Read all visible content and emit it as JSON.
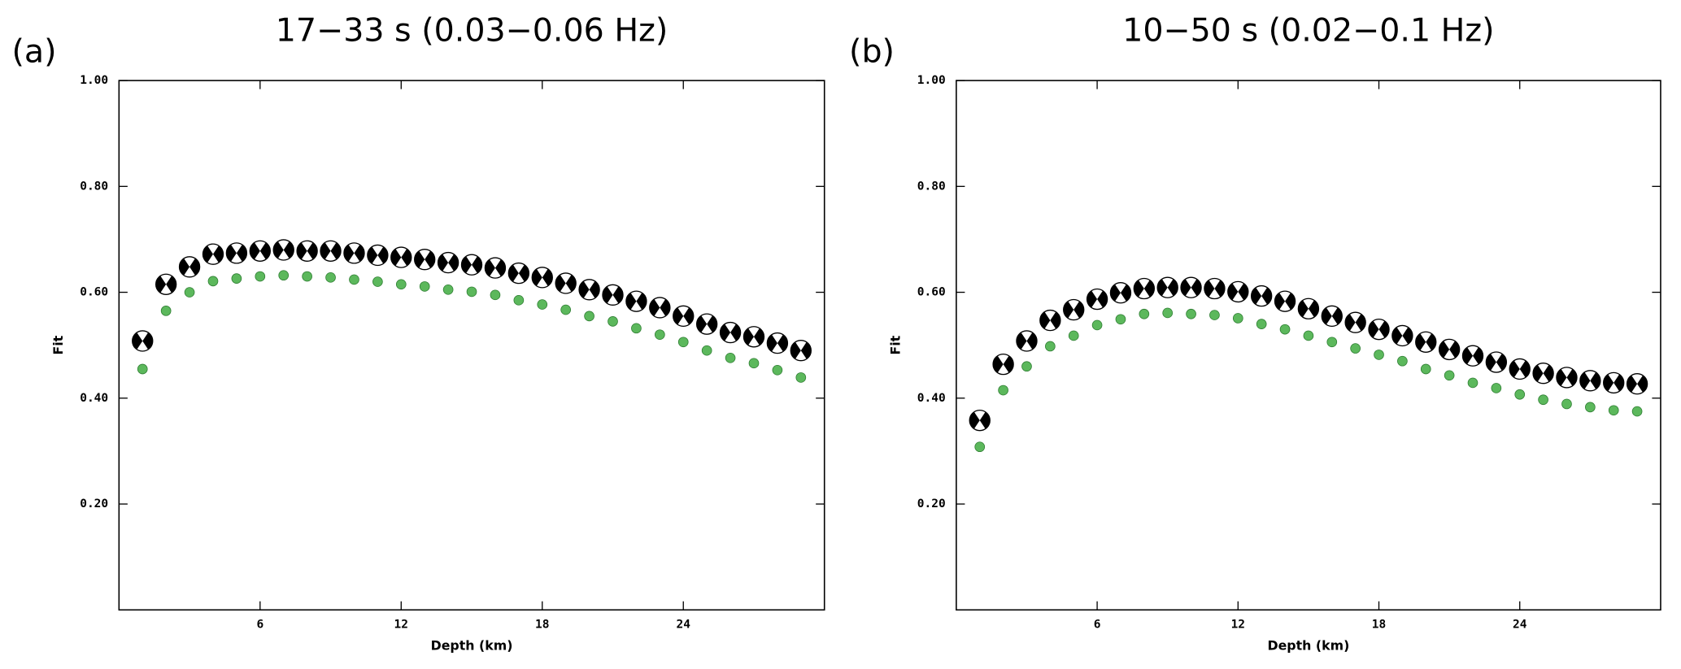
{
  "chart_data": [
    {
      "type": "scatter",
      "label": "(a)",
      "title": "17−33 s (0.03−0.06 Hz)",
      "x_label": "Depth (km)",
      "y_label": "Fit",
      "xlim": [
        0,
        30
      ],
      "xticks": [
        6,
        12,
        18,
        24
      ],
      "ylim": [
        0,
        1
      ],
      "yticks": [
        {
          "value": 0.2,
          "label": "0.20"
        },
        {
          "value": 0.4,
          "label": "0.40"
        },
        {
          "value": 0.6,
          "label": "0.60"
        },
        {
          "value": 0.8,
          "label": "0.80"
        },
        {
          "value": 1,
          "label": "1.00"
        }
      ],
      "x": [
        1,
        2,
        3,
        4,
        5,
        6,
        7,
        8,
        9,
        10,
        11,
        12,
        13,
        14,
        15,
        16,
        17,
        18,
        19,
        20,
        21,
        22,
        23,
        24,
        25,
        26,
        27,
        28,
        29
      ],
      "series": [
        {
          "marker": "beachball",
          "color": "#000000",
          "values": [
            0.508,
            0.615,
            0.648,
            0.672,
            0.674,
            0.678,
            0.68,
            0.678,
            0.678,
            0.674,
            0.67,
            0.666,
            0.662,
            0.656,
            0.652,
            0.646,
            0.636,
            0.628,
            0.617,
            0.605,
            0.595,
            0.583,
            0.571,
            0.555,
            0.54,
            0.524,
            0.516,
            0.504,
            0.49
          ]
        },
        {
          "marker": "dot",
          "color": "#5cb85c",
          "values": [
            0.455,
            0.565,
            0.6,
            0.621,
            0.626,
            0.63,
            0.632,
            0.63,
            0.628,
            0.624,
            0.62,
            0.615,
            0.611,
            0.605,
            0.601,
            0.595,
            0.585,
            0.577,
            0.567,
            0.555,
            0.545,
            0.532,
            0.52,
            0.506,
            0.49,
            0.476,
            0.466,
            0.453,
            0.439
          ]
        }
      ]
    },
    {
      "type": "scatter",
      "label": "(b)",
      "title": "10−50 s (0.02−0.1 Hz)",
      "x_label": "Depth (km)",
      "y_label": "Fit",
      "xlim": [
        0,
        30
      ],
      "xticks": [
        6,
        12,
        18,
        24
      ],
      "ylim": [
        0,
        1
      ],
      "yticks": [
        {
          "value": 0.2,
          "label": "0.20"
        },
        {
          "value": 0.4,
          "label": "0.40"
        },
        {
          "value": 0.6,
          "label": "0.60"
        },
        {
          "value": 0.8,
          "label": "0.80"
        },
        {
          "value": 1,
          "label": "1.00"
        }
      ],
      "x": [
        1,
        2,
        3,
        4,
        5,
        6,
        7,
        8,
        9,
        10,
        11,
        12,
        13,
        14,
        15,
        16,
        17,
        18,
        19,
        20,
        21,
        22,
        23,
        24,
        25,
        26,
        27,
        28,
        29
      ],
      "series": [
        {
          "marker": "beachball",
          "color": "#000000",
          "values": [
            0.358,
            0.464,
            0.508,
            0.547,
            0.567,
            0.587,
            0.599,
            0.607,
            0.609,
            0.609,
            0.607,
            0.601,
            0.593,
            0.583,
            0.569,
            0.555,
            0.543,
            0.53,
            0.518,
            0.506,
            0.492,
            0.48,
            0.468,
            0.455,
            0.447,
            0.439,
            0.433,
            0.429,
            0.427
          ]
        },
        {
          "marker": "dot",
          "color": "#5cb85c",
          "values": [
            0.308,
            0.415,
            0.46,
            0.498,
            0.518,
            0.538,
            0.549,
            0.559,
            0.561,
            0.559,
            0.557,
            0.551,
            0.54,
            0.53,
            0.518,
            0.506,
            0.494,
            0.482,
            0.47,
            0.455,
            0.443,
            0.429,
            0.419,
            0.407,
            0.397,
            0.389,
            0.383,
            0.377,
            0.375
          ]
        }
      ]
    }
  ]
}
